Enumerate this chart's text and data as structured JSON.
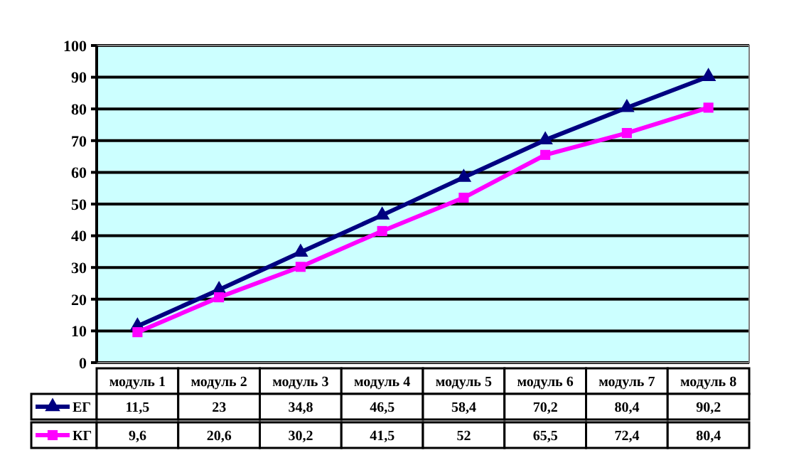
{
  "chart_data": {
    "type": "line",
    "categories": [
      "модуль 1",
      "модуль 2",
      "модуль 3",
      "модуль 4",
      "модуль 5",
      "модуль 6",
      "модуль 7",
      "модуль 8"
    ],
    "series": [
      {
        "name": "ЕГ",
        "color": "#000080",
        "marker": "triangle",
        "values": [
          11.5,
          23,
          34.8,
          46.5,
          58.4,
          70.2,
          80.4,
          90.2
        ],
        "value_labels": [
          "11,5",
          "23",
          "34,8",
          "46,5",
          "58,4",
          "70,2",
          "80,4",
          "90,2"
        ]
      },
      {
        "name": "КГ",
        "color": "#ff00ff",
        "marker": "square",
        "values": [
          9.6,
          20.6,
          30.2,
          41.5,
          52,
          65.5,
          72.4,
          80.4
        ],
        "value_labels": [
          "9,6",
          "20,6",
          "30,2",
          "41,5",
          "52",
          "65,5",
          "72,4",
          "80,4"
        ]
      }
    ],
    "ylim": [
      0,
      100
    ],
    "yticks": [
      0,
      10,
      20,
      30,
      40,
      50,
      60,
      70,
      80,
      90,
      100
    ],
    "grid": "y",
    "legend": "bottom"
  }
}
